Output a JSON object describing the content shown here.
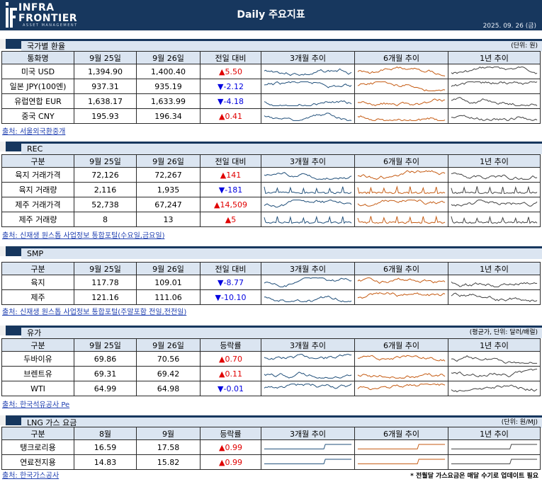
{
  "header": {
    "logo_line1": "INFRA",
    "logo_line2": "FRONTIER",
    "logo_sub": "ASSET MANAGEMENT",
    "title": "Daily 주요지표",
    "date": "2025. 09. 26 (금)"
  },
  "colors": {
    "navy": "#17375e",
    "header_fill": "#dbe5f1",
    "up": "#e00000",
    "down": "#0000e0",
    "line_3m": "#1f4e79",
    "line_6m": "#c55a11",
    "line_1y": "#404040"
  },
  "sections": [
    {
      "id": "fx",
      "title": "국가별 환율",
      "unit": "(단위: 원)",
      "headers": [
        "통화명",
        "9월 25일",
        "9월 26일",
        "전일 대비",
        "3개월 추이",
        "6개월 추이",
        "1년 추이"
      ],
      "rows": [
        {
          "name": "미국 USD",
          "d25": "1,394.90",
          "d26": "1,400.40",
          "dir": "up",
          "arrow": "▲",
          "chg": "5.50"
        },
        {
          "name": "일본 JPY(100엔)",
          "d25": "937.31",
          "d26": "935.19",
          "dir": "down",
          "arrow": "▼",
          "chg": "-2.12"
        },
        {
          "name": "유럽연합 EUR",
          "d25": "1,638.17",
          "d26": "1,633.99",
          "dir": "down",
          "arrow": "▼",
          "chg": "-4.18"
        },
        {
          "name": "중국 CNY",
          "d25": "195.93",
          "d26": "196.34",
          "dir": "up",
          "arrow": "▲",
          "chg": "0.41"
        }
      ],
      "source": "출처: 서울외국환중개"
    },
    {
      "id": "rec",
      "title": "REC",
      "unit": "",
      "headers": [
        "구분",
        "9월 25일",
        "9월 26일",
        "전일 대비",
        "3개월 추이",
        "6개월 추이",
        "1년 추이"
      ],
      "rows": [
        {
          "name": "육지 거래가격",
          "d25": "72,126",
          "d26": "72,267",
          "dir": "up",
          "arrow": "▲",
          "chg": "141"
        },
        {
          "name": "육지 거래량",
          "d25": "2,116",
          "d26": "1,935",
          "dir": "down",
          "arrow": "▼",
          "chg": "-181"
        },
        {
          "name": "제주 거래가격",
          "d25": "52,738",
          "d26": "67,247",
          "dir": "up",
          "arrow": "▲",
          "chg": "14,509"
        },
        {
          "name": "제주 거래량",
          "d25": "8",
          "d26": "13",
          "dir": "up",
          "arrow": "▲",
          "chg": "5"
        }
      ],
      "source": "출처: 신재생 원스톱 사업정보 통합포털(수요일,금요일)"
    },
    {
      "id": "smp",
      "title": "SMP",
      "unit": "",
      "headers": [
        "구분",
        "9월 25일",
        "9월 26일",
        "전일 대비",
        "3개월 추이",
        "6개월 추이",
        "1년 추이"
      ],
      "rows": [
        {
          "name": "육지",
          "d25": "117.78",
          "d26": "109.01",
          "dir": "down",
          "arrow": "▼",
          "chg": "-8.77"
        },
        {
          "name": "제주",
          "d25": "121.16",
          "d26": "111.06",
          "dir": "down",
          "arrow": "▼",
          "chg": "-10.10"
        }
      ],
      "source": "출처: 신재생 원스톱 사업정보 통합포털(주말포함 전일,전전일)"
    },
    {
      "id": "oil",
      "title": "유가",
      "unit": "(평균가, 단위: 달러/배럴)",
      "headers": [
        "구분",
        "9월 25일",
        "9월 26일",
        "등락률",
        "3개월 추이",
        "6개월 추이",
        "1년 추이"
      ],
      "rows": [
        {
          "name": "두바이유",
          "d25": "69.86",
          "d26": "70.56",
          "dir": "up",
          "arrow": "▲",
          "chg": "0.70"
        },
        {
          "name": "브렌트유",
          "d25": "69.31",
          "d26": "69.42",
          "dir": "up",
          "arrow": "▲",
          "chg": "0.11"
        },
        {
          "name": "WTI",
          "d25": "64.99",
          "d26": "64.98",
          "dir": "down",
          "arrow": "▼",
          "chg": "-0.01"
        }
      ],
      "source": "출처: 한국석유공사 Pe"
    },
    {
      "id": "lng",
      "title": "LNG 가스 요금",
      "unit": "(단위: 원/MJ)",
      "headers": [
        "구분",
        "8월",
        "9월",
        "등락률",
        "3개월 추이",
        "6개월 추이",
        "1년 추이"
      ],
      "rows": [
        {
          "name": "탱크로리용",
          "d25": "16.59",
          "d26": "17.58",
          "dir": "up",
          "arrow": "▲",
          "chg": "0.99"
        },
        {
          "name": "연료전지용",
          "d25": "14.83",
          "d26": "15.82",
          "dir": "up",
          "arrow": "▲",
          "chg": "0.99"
        }
      ],
      "source": "출처: 한국가스공사",
      "footnote": "* 전월달 가스요금은 매달 수기로 업데이트 필요"
    }
  ]
}
